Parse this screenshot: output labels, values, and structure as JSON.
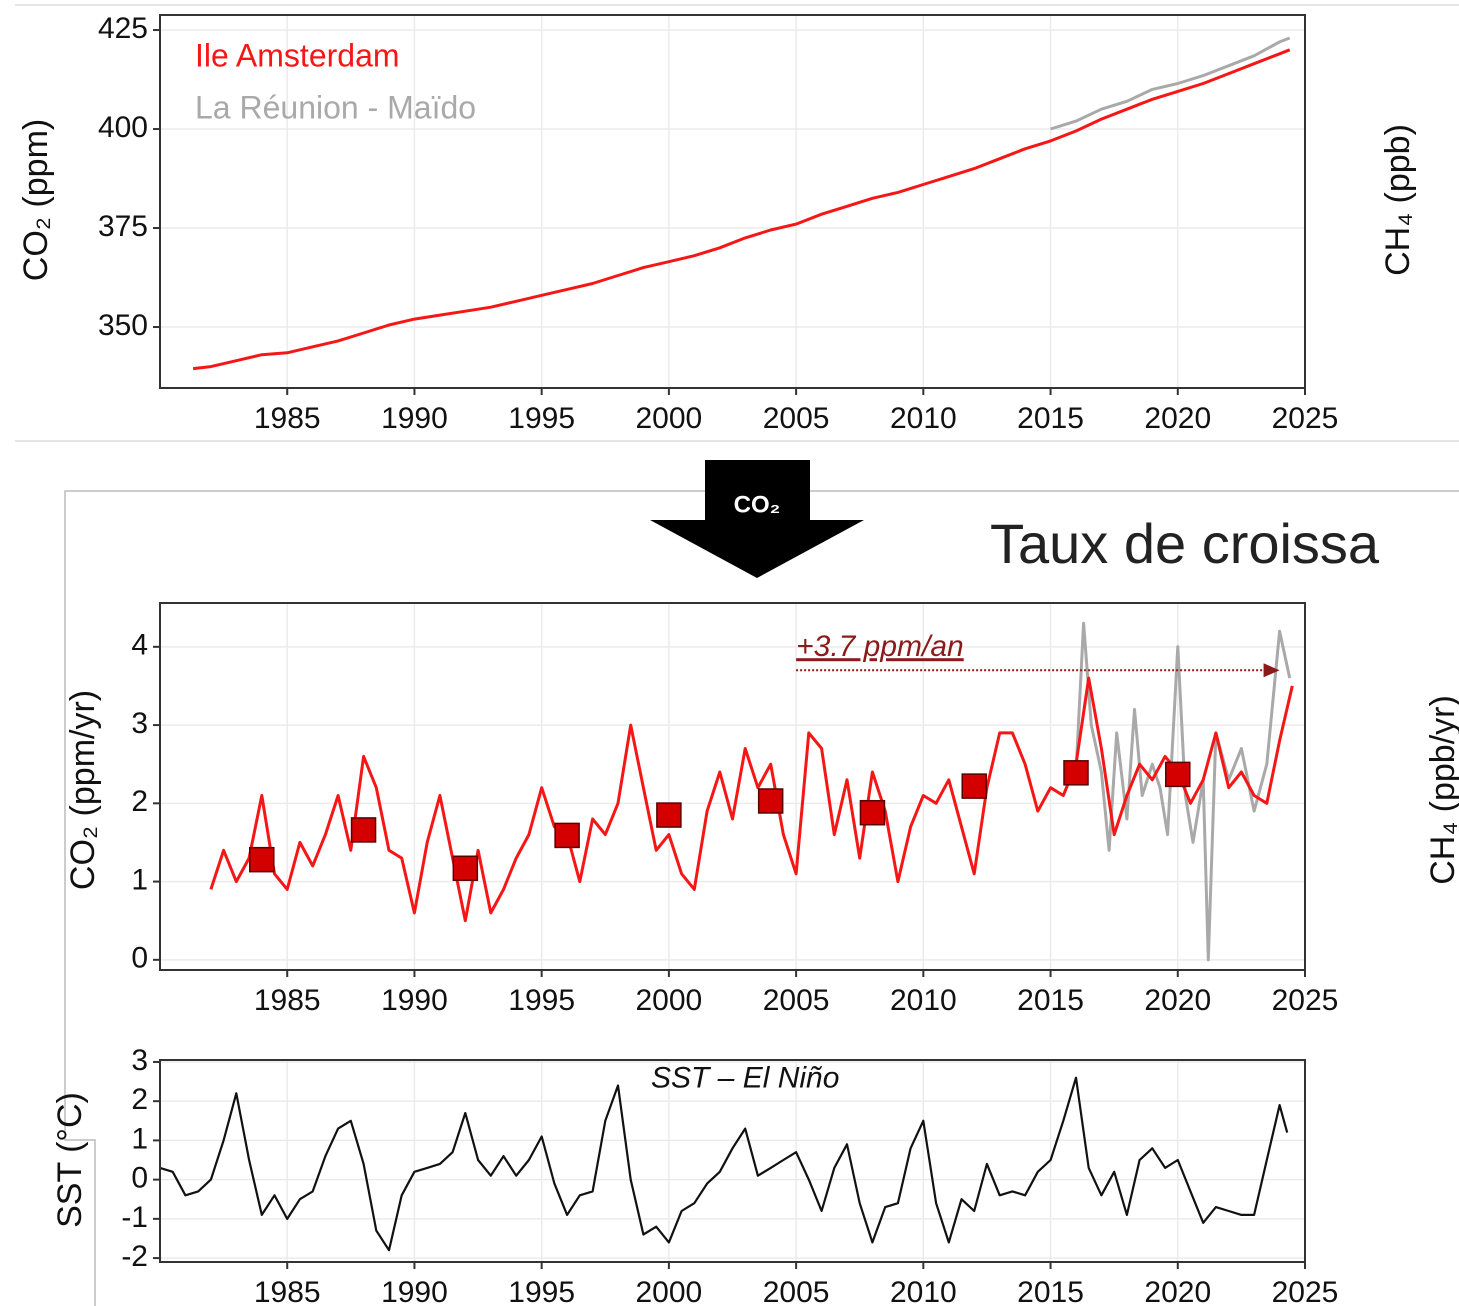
{
  "header": {
    "title": "Taux de croissa",
    "arrow_label": "CO₂"
  },
  "side_labels": [
    "CH₄ (ppb)",
    "CH₄ (ppb/yr)"
  ],
  "chart_data": [
    {
      "type": "line",
      "ylabel": "CO₂ (ppm)",
      "xlim": [
        1980,
        2025
      ],
      "ylim": [
        334.6,
        428.8
      ],
      "xticks": [
        1985,
        1990,
        1995,
        2000,
        2005,
        2010,
        2015,
        2020,
        2025
      ],
      "yticks": [
        350,
        375,
        400,
        425
      ],
      "grid": true,
      "legend": "top-left",
      "series": [
        {
          "name": "Ile Amsterdam",
          "color": "#f51616",
          "x": [
            1981.3,
            1982,
            1983,
            1984,
            1985,
            1986,
            1987,
            1988,
            1989,
            1990,
            1991,
            1992,
            1993,
            1994,
            1995,
            1996,
            1997,
            1998,
            1999,
            2000,
            2001,
            2002,
            2003,
            2004,
            2005,
            2006,
            2007,
            2008,
            2009,
            2010,
            2011,
            2012,
            2013,
            2014,
            2015,
            2016,
            2017,
            2018,
            2019,
            2020,
            2021,
            2022,
            2023,
            2024,
            2024.4
          ],
          "values": [
            339.5,
            340,
            341.5,
            343,
            343.5,
            345,
            346.5,
            348.5,
            350.5,
            352,
            353,
            354,
            355,
            356.5,
            358,
            359.5,
            361,
            363,
            365,
            366.5,
            368,
            370,
            372.5,
            374.5,
            376,
            378.5,
            380.5,
            382.5,
            384,
            386,
            388,
            390,
            392.5,
            395,
            397,
            399.5,
            402.5,
            405,
            407.5,
            409.5,
            411.5,
            414,
            416.5,
            419,
            420
          ]
        },
        {
          "name": "La Réunion - Maïdo",
          "color": "#a9a9a9",
          "x": [
            2015,
            2016,
            2017,
            2018,
            2019,
            2020,
            2021,
            2022,
            2023,
            2024,
            2024.4
          ],
          "values": [
            400,
            402,
            405,
            407,
            410,
            411.5,
            413.5,
            416,
            418.5,
            422,
            423
          ]
        }
      ]
    },
    {
      "type": "line",
      "ylabel": "CO₂ (ppm/yr)",
      "xlim": [
        1980,
        2025
      ],
      "ylim": [
        -0.13,
        4.56
      ],
      "xticks": [
        1985,
        1990,
        1995,
        2000,
        2005,
        2010,
        2015,
        2020,
        2025
      ],
      "yticks": [
        0,
        1,
        2,
        3,
        4
      ],
      "grid": true,
      "annotation": {
        "text": "+3.7 ppm/an",
        "x": [
          2005,
          2024
        ],
        "y": 3.7,
        "color": "#8b1a1a"
      },
      "series": [
        {
          "color": "#a9a9a9",
          "x": [
            2016,
            2016.3,
            2016.6,
            2017,
            2017.3,
            2017.6,
            2018,
            2018.3,
            2018.6,
            2019,
            2019.3,
            2019.6,
            2020,
            2020.3,
            2020.6,
            2021,
            2021.2,
            2021.5,
            2022,
            2022.5,
            2023,
            2023.5,
            2024,
            2024.4
          ],
          "values": [
            2.4,
            4.3,
            3.0,
            2.4,
            1.4,
            2.9,
            1.8,
            3.2,
            2.1,
            2.5,
            2.2,
            1.6,
            4.0,
            2.1,
            1.5,
            2.3,
            0.0,
            2.9,
            2.3,
            2.7,
            1.9,
            2.5,
            4.2,
            3.6
          ]
        },
        {
          "color": "#f51616",
          "x": [
            1982,
            1982.5,
            1983,
            1983.5,
            1984,
            1984.5,
            1985,
            1985.5,
            1986,
            1986.5,
            1987,
            1987.5,
            1988,
            1988.5,
            1989,
            1989.5,
            1990,
            1990.5,
            1991,
            1991.5,
            1992,
            1992.5,
            1993,
            1993.5,
            1994,
            1994.5,
            1995,
            1995.5,
            1996,
            1996.5,
            1997,
            1997.5,
            1998,
            1998.5,
            1999,
            1999.5,
            2000,
            2000.5,
            2001,
            2001.5,
            2002,
            2002.5,
            2003,
            2003.5,
            2004,
            2004.5,
            2005,
            2005.5,
            2006,
            2006.5,
            2007,
            2007.5,
            2008,
            2008.5,
            2009,
            2009.5,
            2010,
            2010.5,
            2011,
            2011.5,
            2012,
            2012.5,
            2013,
            2013.5,
            2014,
            2014.5,
            2015,
            2015.5,
            2016,
            2016.5,
            2017,
            2017.5,
            2018,
            2018.5,
            2019,
            2019.5,
            2020,
            2020.5,
            2021,
            2021.5,
            2022,
            2022.5,
            2023,
            2023.5,
            2024,
            2024.5
          ],
          "values": [
            0.9,
            1.4,
            1.0,
            1.3,
            2.1,
            1.1,
            0.9,
            1.5,
            1.2,
            1.6,
            2.1,
            1.4,
            2.6,
            2.2,
            1.4,
            1.3,
            0.6,
            1.5,
            2.1,
            1.3,
            0.5,
            1.4,
            0.6,
            0.9,
            1.3,
            1.6,
            2.2,
            1.7,
            1.6,
            1.0,
            1.8,
            1.6,
            2.0,
            3.0,
            2.2,
            1.4,
            1.6,
            1.1,
            0.9,
            1.9,
            2.4,
            1.8,
            2.7,
            2.2,
            2.5,
            1.6,
            1.1,
            2.9,
            2.7,
            1.6,
            2.3,
            1.3,
            2.4,
            1.9,
            1.0,
            1.7,
            2.1,
            2.0,
            2.3,
            1.7,
            1.1,
            2.2,
            2.9,
            2.9,
            2.5,
            1.9,
            2.2,
            2.1,
            2.5,
            3.6,
            2.7,
            1.6,
            2.1,
            2.5,
            2.3,
            2.6,
            2.4,
            2.0,
            2.3,
            2.9,
            2.2,
            2.4,
            2.1,
            2.0,
            2.8,
            3.5
          ]
        },
        {
          "color": "#d40000",
          "marker": "square",
          "x": [
            1984,
            1988,
            1992,
            1996,
            2000,
            2004,
            2008,
            2012,
            2016,
            2020
          ],
          "values": [
            1.28,
            1.66,
            1.17,
            1.59,
            1.85,
            2.03,
            1.88,
            2.22,
            2.39,
            2.37
          ]
        }
      ]
    },
    {
      "type": "line",
      "ylabel": "SST (°C)",
      "xlim": [
        1980,
        2025
      ],
      "ylim": [
        -2.1,
        3.05
      ],
      "xticks": [
        1985,
        1990,
        1995,
        2000,
        2005,
        2010,
        2015,
        2020,
        2025
      ],
      "yticks": [
        -2,
        -1,
        0,
        1,
        2,
        3
      ],
      "grid": true,
      "annotation": {
        "text": "SST – El Niño",
        "x": 2003,
        "y": 2.55,
        "color": "#111111"
      },
      "series": [
        {
          "color": "#111111",
          "x": [
            1980,
            1980.5,
            1981,
            1981.5,
            1982,
            1982.5,
            1983,
            1983.5,
            1984,
            1984.5,
            1985,
            1985.5,
            1986,
            1986.5,
            1987,
            1987.5,
            1988,
            1988.5,
            1989,
            1989.5,
            1990,
            1990.5,
            1991,
            1991.5,
            1992,
            1992.5,
            1993,
            1993.5,
            1994,
            1994.5,
            1995,
            1995.5,
            1996,
            1996.5,
            1997,
            1997.5,
            1998,
            1998.5,
            1999,
            1999.5,
            2000,
            2000.5,
            2001,
            2001.5,
            2002,
            2002.5,
            2003,
            2003.5,
            2004,
            2004.5,
            2005,
            2005.5,
            2006,
            2006.5,
            2007,
            2007.5,
            2008,
            2008.5,
            2009,
            2009.5,
            2010,
            2010.5,
            2011,
            2011.5,
            2012,
            2012.5,
            2013,
            2013.5,
            2014,
            2014.5,
            2015,
            2015.5,
            2016,
            2016.5,
            2017,
            2017.5,
            2018,
            2018.5,
            2019,
            2019.5,
            2020,
            2020.5,
            2021,
            2021.5,
            2022,
            2022.5,
            2023,
            2023.5,
            2024,
            2024.3
          ],
          "values": [
            0.3,
            0.2,
            -0.4,
            -0.3,
            0.0,
            1.0,
            2.2,
            0.5,
            -0.9,
            -0.4,
            -1.0,
            -0.5,
            -0.3,
            0.6,
            1.3,
            1.5,
            0.4,
            -1.3,
            -1.8,
            -0.4,
            0.2,
            0.3,
            0.4,
            0.7,
            1.7,
            0.5,
            0.1,
            0.6,
            0.1,
            0.5,
            1.1,
            -0.1,
            -0.9,
            -0.4,
            -0.3,
            1.5,
            2.4,
            0.0,
            -1.4,
            -1.2,
            -1.6,
            -0.8,
            -0.6,
            -0.1,
            0.2,
            0.8,
            1.3,
            0.1,
            0.3,
            0.5,
            0.7,
            0.0,
            -0.8,
            0.3,
            0.9,
            -0.6,
            -1.6,
            -0.7,
            -0.6,
            0.8,
            1.5,
            -0.6,
            -1.6,
            -0.5,
            -0.8,
            0.4,
            -0.4,
            -0.3,
            -0.4,
            0.2,
            0.5,
            1.5,
            2.6,
            0.3,
            -0.4,
            0.2,
            -0.9,
            0.5,
            0.8,
            0.3,
            0.5,
            -0.3,
            -1.1,
            -0.7,
            -0.8,
            -0.9,
            -0.9,
            0.5,
            1.9,
            1.2
          ]
        }
      ]
    }
  ]
}
